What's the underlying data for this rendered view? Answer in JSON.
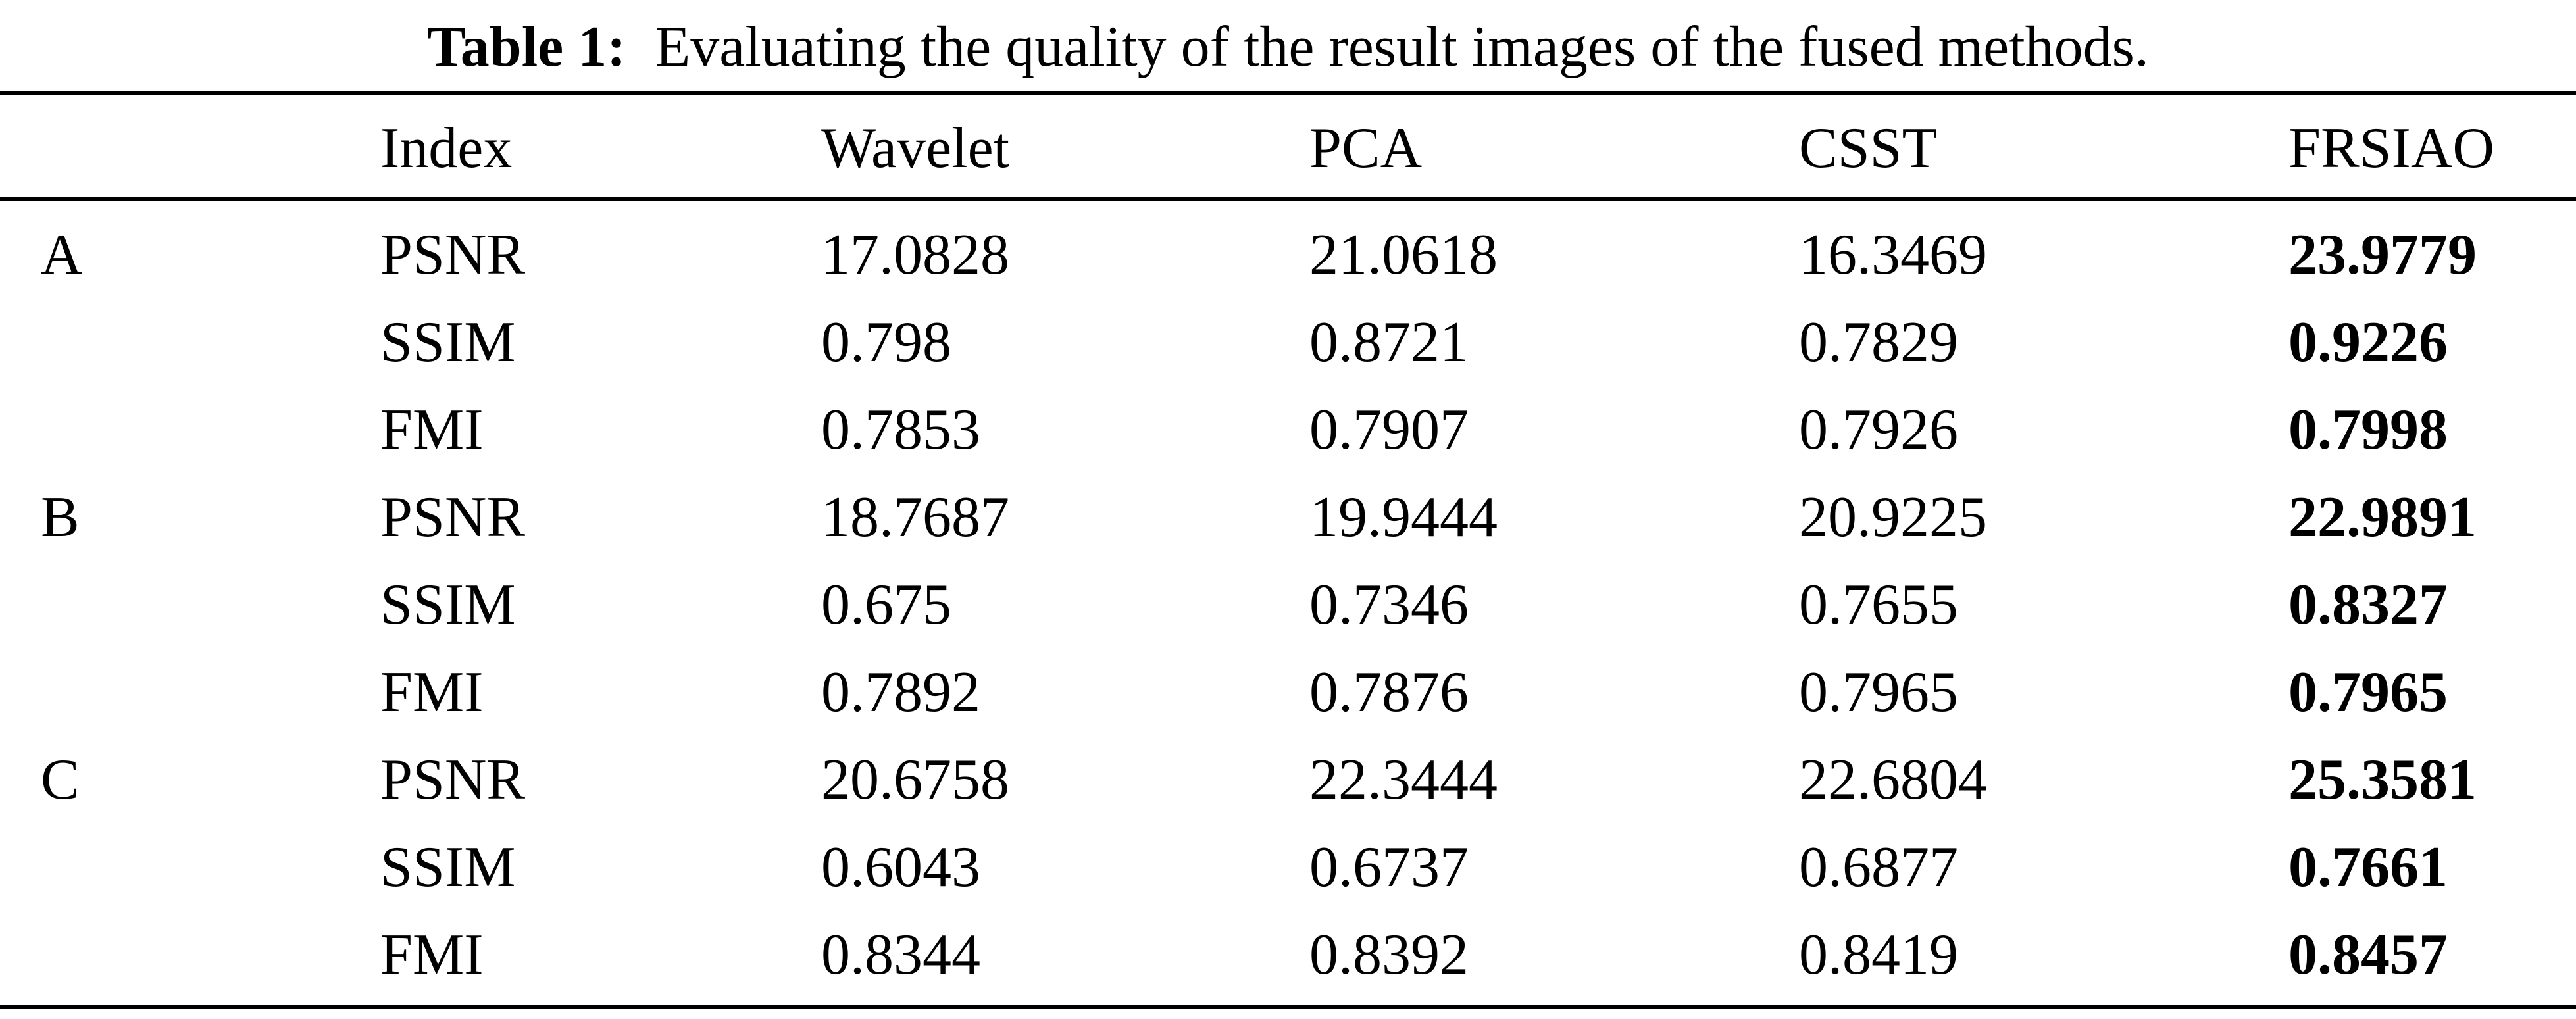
{
  "caption": {
    "label": "Table 1:",
    "text": "Evaluating the quality of the result images of the fused methods."
  },
  "table": {
    "headers": [
      "",
      "Index",
      "Wavelet",
      "PCA",
      "CSST",
      "FRSIAO"
    ],
    "rows": [
      [
        "A",
        "PSNR",
        "17.0828",
        "21.0618",
        "16.3469",
        "23.9779"
      ],
      [
        "",
        "SSIM",
        "0.798",
        "0.8721",
        "0.7829",
        "0.9226"
      ],
      [
        "",
        "FMI",
        "0.7853",
        "0.7907",
        "0.7926",
        "0.7998"
      ],
      [
        "B",
        "PSNR",
        "18.7687",
        "19.9444",
        "20.9225",
        "22.9891"
      ],
      [
        "",
        "SSIM",
        "0.675",
        "0.7346",
        "0.7655",
        "0.8327"
      ],
      [
        "",
        "FMI",
        "0.7892",
        "0.7876",
        "0.7965",
        "0.7965"
      ],
      [
        "C",
        "PSNR",
        "20.6758",
        "22.3444",
        "22.6804",
        "25.3581"
      ],
      [
        "",
        "SSIM",
        "0.6043",
        "0.6737",
        "0.6877",
        "0.7661"
      ],
      [
        "",
        "FMI",
        "0.8344",
        "0.8392",
        "0.8419",
        "0.8457"
      ]
    ],
    "bold_column": "FRSIAO"
  }
}
